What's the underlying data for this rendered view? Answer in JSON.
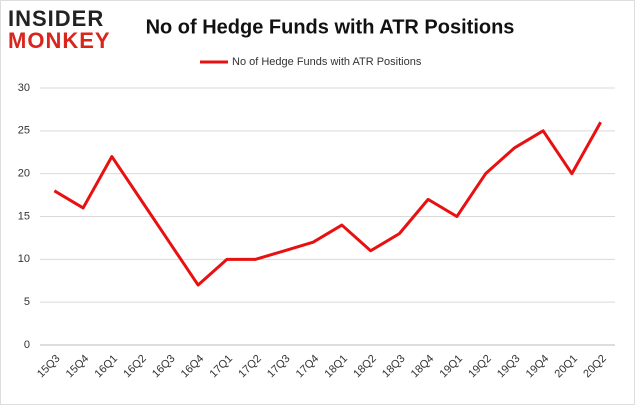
{
  "logo": {
    "line1": "INSIDER",
    "line2": "MONKEY"
  },
  "chart_data": {
    "type": "line",
    "title": "No of Hedge Funds with ATR Positions",
    "categories": [
      "15Q3",
      "15Q4",
      "16Q1",
      "16Q2",
      "16Q3",
      "16Q4",
      "17Q1",
      "17Q2",
      "17Q3",
      "17Q4",
      "18Q1",
      "18Q2",
      "18Q3",
      "18Q4",
      "19Q1",
      "19Q2",
      "19Q3",
      "19Q4",
      "20Q1",
      "20Q2"
    ],
    "series": [
      {
        "name": "No of Hedge Funds with ATR Positions",
        "color": "#e81010",
        "values": [
          18,
          16,
          22,
          17,
          12,
          7,
          10,
          10,
          11,
          12,
          14,
          11,
          13,
          17,
          15,
          20,
          23,
          25,
          20,
          26
        ]
      }
    ],
    "ylim": [
      0,
      30
    ],
    "yticks": [
      0,
      5,
      10,
      15,
      20,
      25,
      30
    ],
    "grid": true,
    "legend": "top"
  }
}
